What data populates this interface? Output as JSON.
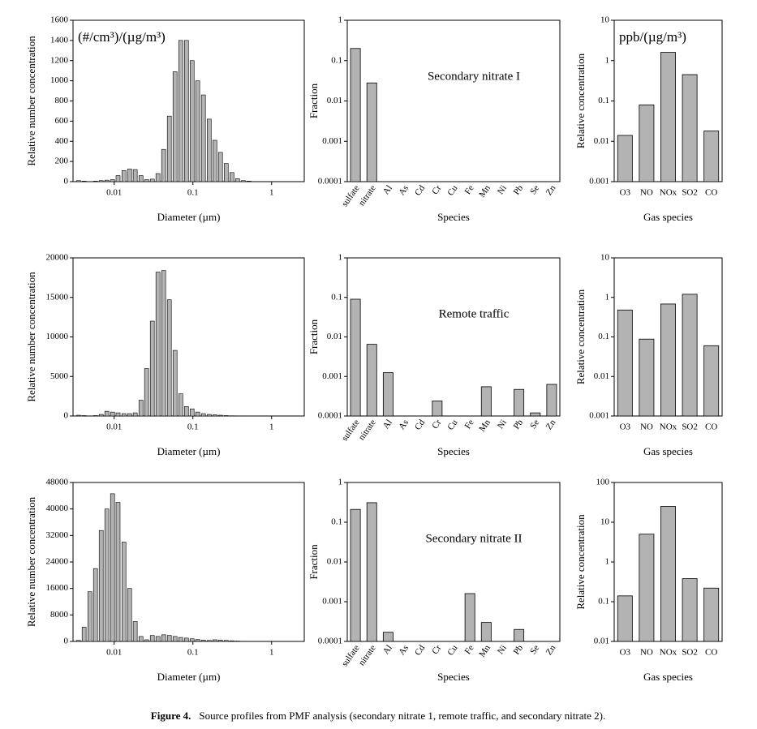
{
  "chart_data": [
    {
      "type": "bar",
      "xscale": "log",
      "color": "#b3b3b3",
      "annotation": "(#/cm³)/(µg/m³)",
      "xlabel": "Diameter (µm)",
      "ylabel": "Relative number concentration",
      "xlim": [
        0.003,
        2.6
      ],
      "xticks": [
        0.01,
        0.1,
        1
      ],
      "ylim": [
        0,
        1600
      ],
      "yticks": [
        0,
        200,
        400,
        600,
        800,
        1000,
        1200,
        1400,
        1600
      ],
      "x": [
        0.00352,
        0.00415,
        0.00491,
        0.00579,
        0.00684,
        0.00807,
        0.00953,
        0.0112,
        0.0133,
        0.0157,
        0.0185,
        0.0219,
        0.0258,
        0.0305,
        0.036,
        0.0425,
        0.0502,
        0.0593,
        0.0701,
        0.0828,
        0.0977,
        0.115,
        0.136,
        0.161,
        0.19,
        0.224,
        0.265,
        0.313,
        0.369,
        0.436,
        0.515,
        0.608,
        0.718,
        0.848,
        1.0
      ],
      "values": [
        10,
        5,
        0,
        5,
        10,
        15,
        20,
        60,
        110,
        125,
        120,
        60,
        20,
        25,
        80,
        320,
        650,
        1090,
        1400,
        1400,
        1200,
        1000,
        860,
        620,
        410,
        290,
        180,
        90,
        30,
        10,
        5,
        0,
        0,
        0,
        0
      ]
    },
    {
      "type": "bar",
      "yscale": "log",
      "color": "#b3b3b3",
      "annotation": "Secondary nitrate I",
      "xlabel": "Species",
      "ylabel": "Fraction",
      "ylim": [
        0.0001,
        1
      ],
      "yticks": [
        0.0001,
        0.001,
        0.01,
        0.1,
        1
      ],
      "categories": [
        "sulfate",
        "nitrate",
        "Al",
        "As",
        "Cd",
        "Cr",
        "Cu",
        "Fe",
        "Mn",
        "Ni",
        "Pb",
        "Se",
        "Zn"
      ],
      "values": [
        0.2,
        0.028,
        null,
        null,
        null,
        null,
        null,
        null,
        null,
        null,
        null,
        null,
        null
      ]
    },
    {
      "type": "bar",
      "yscale": "log",
      "color": "#b3b3b3",
      "annotation": "ppb/(µg/m³)",
      "xlabel": "Gas species",
      "ylabel": "Relative concentration",
      "ylim": [
        0.001,
        10
      ],
      "yticks": [
        0.001,
        0.01,
        0.1,
        1,
        10
      ],
      "categories": [
        "O3",
        "NO",
        "NOx",
        "SO2",
        "CO"
      ],
      "values": [
        0.014,
        0.08,
        1.6,
        0.45,
        0.018
      ]
    },
    {
      "type": "bar",
      "xscale": "log",
      "color": "#b3b3b3",
      "xlabel": "Diameter (µm)",
      "ylabel": "Relative number concentration",
      "xlim": [
        0.003,
        2.6
      ],
      "xticks": [
        0.01,
        0.1,
        1
      ],
      "ylim": [
        0,
        20000
      ],
      "yticks": [
        0,
        5000,
        10000,
        15000,
        20000
      ],
      "x": [
        0.00352,
        0.00415,
        0.00491,
        0.00579,
        0.00684,
        0.00807,
        0.00953,
        0.0112,
        0.0133,
        0.0157,
        0.0185,
        0.0219,
        0.0258,
        0.0305,
        0.036,
        0.0425,
        0.0502,
        0.0593,
        0.0701,
        0.0828,
        0.0977,
        0.115,
        0.136,
        0.161,
        0.19,
        0.224,
        0.265,
        0.313,
        0.369,
        0.436,
        0.515,
        0.608,
        0.718,
        0.848,
        1.0
      ],
      "values": [
        100,
        50,
        0,
        50,
        200,
        600,
        500,
        400,
        300,
        300,
        400,
        2000,
        6000,
        12000,
        18200,
        18400,
        14700,
        8300,
        2800,
        1200,
        900,
        500,
        300,
        200,
        150,
        100,
        50,
        30,
        20,
        20,
        10,
        10,
        0,
        0,
        0
      ]
    },
    {
      "type": "bar",
      "yscale": "log",
      "color": "#b3b3b3",
      "annotation": "Remote traffic",
      "xlabel": "Species",
      "ylabel": "Fraction",
      "ylim": [
        0.0001,
        1
      ],
      "yticks": [
        0.0001,
        0.001,
        0.01,
        0.1,
        1
      ],
      "categories": [
        "sulfate",
        "nitrate",
        "Al",
        "As",
        "Cd",
        "Cr",
        "Cu",
        "Fe",
        "Mn",
        "Ni",
        "Pb",
        "Se",
        "Zn"
      ],
      "values": [
        0.09,
        0.0065,
        0.00125,
        null,
        null,
        0.00024,
        null,
        null,
        0.00055,
        null,
        0.00047,
        0.00012,
        0.00063
      ]
    },
    {
      "type": "bar",
      "yscale": "log",
      "color": "#b3b3b3",
      "xlabel": "Gas species",
      "ylabel": "Relative concentration",
      "ylim": [
        0.001,
        10
      ],
      "yticks": [
        0.001,
        0.01,
        0.1,
        1,
        10
      ],
      "categories": [
        "O3",
        "NO",
        "NOx",
        "SO2",
        "CO"
      ],
      "values": [
        0.48,
        0.088,
        0.68,
        1.2,
        0.06
      ]
    },
    {
      "type": "bar",
      "xscale": "log",
      "color": "#b3b3b3",
      "xlabel": "Diameter (µm)",
      "ylabel": "Relative number concentration",
      "xlim": [
        0.003,
        2.6
      ],
      "xticks": [
        0.01,
        0.1,
        1
      ],
      "ylim": [
        0,
        48000
      ],
      "yticks": [
        0,
        8000,
        16000,
        24000,
        32000,
        40000,
        48000
      ],
      "x": [
        0.00352,
        0.00415,
        0.00491,
        0.00579,
        0.00684,
        0.00807,
        0.00953,
        0.0112,
        0.0133,
        0.0157,
        0.0185,
        0.0219,
        0.0258,
        0.0305,
        0.036,
        0.0425,
        0.0502,
        0.0593,
        0.0701,
        0.0828,
        0.0977,
        0.115,
        0.136,
        0.161,
        0.19,
        0.224,
        0.265,
        0.313,
        0.369,
        0.436,
        0.515,
        0.608,
        0.718,
        0.848,
        1.0
      ],
      "values": [
        300,
        4300,
        15000,
        22000,
        33500,
        40000,
        44600,
        42000,
        30000,
        16000,
        6000,
        1500,
        500,
        1800,
        1500,
        2000,
        1800,
        1500,
        1200,
        1000,
        800,
        600,
        400,
        300,
        500,
        400,
        300,
        200,
        100,
        50,
        0,
        0,
        0,
        0,
        0
      ]
    },
    {
      "type": "bar",
      "yscale": "log",
      "color": "#b3b3b3",
      "annotation": "Secondary nitrate II",
      "xlabel": "Species",
      "ylabel": "Fraction",
      "ylim": [
        0.0001,
        1
      ],
      "yticks": [
        0.0001,
        0.001,
        0.01,
        0.1,
        1
      ],
      "categories": [
        "sulfate",
        "nitrate",
        "Al",
        "As",
        "Cd",
        "Cr",
        "Cu",
        "Fe",
        "Mn",
        "Ni",
        "Pb",
        "Se",
        "Zn"
      ],
      "values": [
        0.21,
        0.31,
        0.00017,
        null,
        null,
        null,
        null,
        0.0016,
        0.0003,
        null,
        0.0002,
        null,
        null
      ]
    },
    {
      "type": "bar",
      "yscale": "log",
      "color": "#b3b3b3",
      "xlabel": "Gas species",
      "ylabel": "Relative concentration",
      "ylim": [
        0.01,
        100
      ],
      "yticks": [
        0.01,
        0.1,
        1,
        10,
        100
      ],
      "categories": [
        "O3",
        "NO",
        "NOx",
        "SO2",
        "CO"
      ],
      "values": [
        0.14,
        5,
        25,
        0.38,
        0.22
      ]
    }
  ],
  "caption": {
    "label": "Figure 4.",
    "text": "Source profiles from PMF analysis (secondary nitrate 1, remote traffic, and secondary nitrate 2)."
  }
}
